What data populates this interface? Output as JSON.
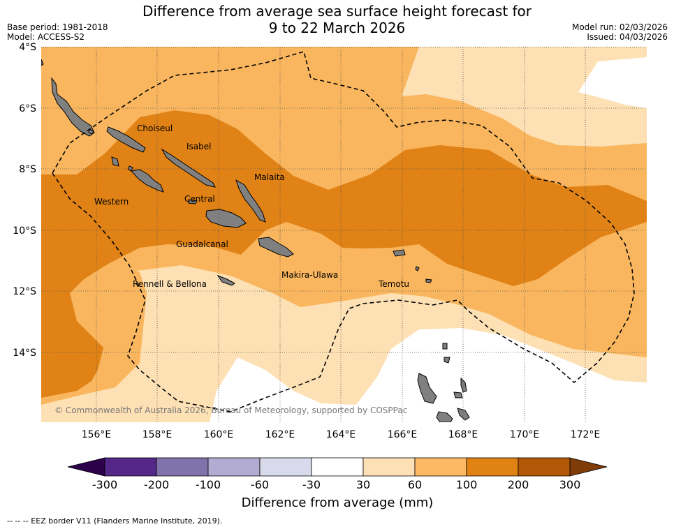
{
  "title_line1": "Difference from average sea surface height forecast for",
  "title_line2": "9 to 22 March 2026",
  "base_period": "Base period: 1981-2018",
  "model": "Model: ACCESS-S2",
  "model_run": "Model run: 02/03/2026",
  "issued": "Issued: 04/03/2026",
  "copyright": "© Commonwealth of Australia 2026, Bureau of Meteorology, supported by COSPPac",
  "footnote": "--  --  -- EEZ border V11 (Flanders Marine Institute, 2019).",
  "colors": {
    "ocean_white": "#ffffff",
    "c30_60": "#fde0b4",
    "c60_100": "#f9b65e",
    "c100_200": "#e08215",
    "c200_300": "#b35806",
    "land": "#808080"
  },
  "lat_labels": [
    "4°S",
    "6°S",
    "8°S",
    "10°S",
    "12°S",
    "14°S"
  ],
  "lon_labels": [
    "156°E",
    "158°E",
    "160°E",
    "162°E",
    "164°E",
    "166°E",
    "168°E",
    "170°E",
    "172°E"
  ],
  "provinces": {
    "choiseul": "Choiseul",
    "isabel": "Isabel",
    "malaita": "Malaita",
    "western": "Western",
    "central": "Central",
    "guadalcanal": "Guadalcanal",
    "makira": "Makira-Ulawa",
    "temotu": "Temotu",
    "rennell": "Rennell & Bellona"
  },
  "colorbar": {
    "ticks": [
      "-300",
      "-200",
      "-100",
      "-60",
      "-30",
      "30",
      "60",
      "100",
      "200",
      "300"
    ],
    "colors": [
      "#542788",
      "#8073ac",
      "#b2abd2",
      "#d8daeb",
      "#ffffff",
      "#fee0b6",
      "#fdb863",
      "#e08214",
      "#b35806"
    ],
    "under_color": "#2d004b",
    "over_color": "#7f3b08",
    "label": "Difference from average (mm)"
  }
}
